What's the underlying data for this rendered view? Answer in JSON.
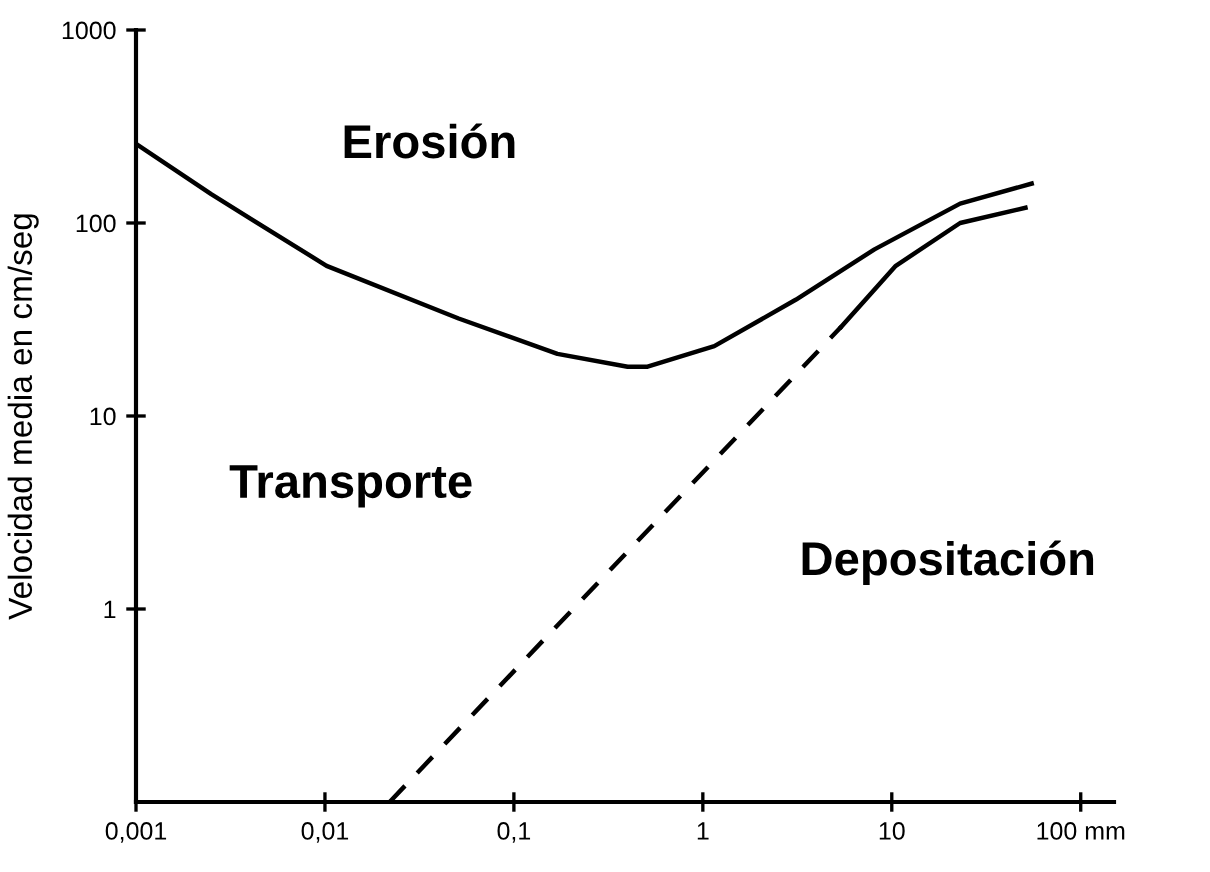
{
  "chart_data": {
    "type": "line",
    "ylabel": "Velocidad media en cm/seg",
    "annotations": [
      "Erosión",
      "Transporte",
      "Depositación"
    ],
    "log": "xy",
    "xlim": [
      0.001,
      150
    ],
    "ylim": [
      0.1,
      1000
    ],
    "xticks": [
      {
        "value": 0.001,
        "label": "0,001"
      },
      {
        "value": 0.01,
        "label": "0,01"
      },
      {
        "value": 0.1,
        "label": "0,1"
      },
      1,
      10,
      {
        "value": 100,
        "label": "100 mm"
      }
    ],
    "yticks": [
      1,
      10,
      100,
      1000
    ],
    "grid": false,
    "legend": false,
    "marker": "none",
    "series": [
      {
        "color": "#000000",
        "line_style": "solid",
        "x": [
          0.001,
          0.0025,
          0.0102,
          0.051,
          0.17,
          0.4,
          0.51,
          1.15,
          3.1,
          8.1,
          23,
          55
        ],
        "values": [
          257,
          141,
          60,
          32,
          21,
          18,
          18,
          23,
          40,
          73,
          126,
          160
        ]
      },
      {
        "color": "#000000",
        "line_style": "dashed",
        "x": [
          0.022,
          5.4
        ],
        "values": [
          0.1,
          29
        ]
      },
      {
        "color": "#000000",
        "line_style": "solid",
        "x": [
          5.4,
          10.5,
          23,
          51
        ],
        "values": [
          29,
          60,
          100,
          120
        ]
      }
    ]
  }
}
